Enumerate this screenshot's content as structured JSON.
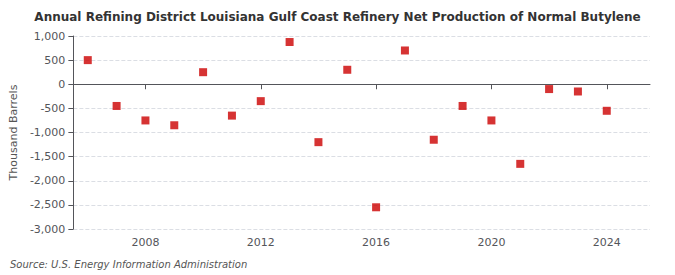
{
  "chart_data": {
    "type": "scatter",
    "title": "Annual Refining District Louisiana Gulf Coast Refinery Net Production of Normal Butylene",
    "ylabel": "Thousand Barrels",
    "source": "Source: U.S. Energy Information Administration",
    "x": [
      2006,
      2007,
      2008,
      2009,
      2010,
      2011,
      2012,
      2013,
      2014,
      2015,
      2016,
      2017,
      2018,
      2019,
      2020,
      2021,
      2022,
      2023,
      2024
    ],
    "values": [
      500,
      -450,
      -750,
      -850,
      250,
      -650,
      -350,
      875,
      -1200,
      300,
      -2550,
      700,
      -1150,
      -450,
      -750,
      -1650,
      -100,
      -150,
      -550
    ],
    "color": "#cc0000",
    "marker": "square",
    "xlim": [
      2005.5,
      2025.5
    ],
    "xticks": [
      2008,
      2012,
      2016,
      2020,
      2024
    ],
    "ylim": [
      -3000,
      1000
    ],
    "yticks": [
      {
        "value": -3000,
        "label": "-3,000"
      },
      {
        "value": -2500,
        "label": "-2,500"
      },
      {
        "value": -2000,
        "label": "-2,000"
      },
      {
        "value": -1500,
        "label": "-1,500"
      },
      {
        "value": -1000,
        "label": "-1,000"
      },
      -500,
      0,
      500,
      {
        "value": 1000,
        "label": "1,000"
      }
    ],
    "grid": true
  }
}
